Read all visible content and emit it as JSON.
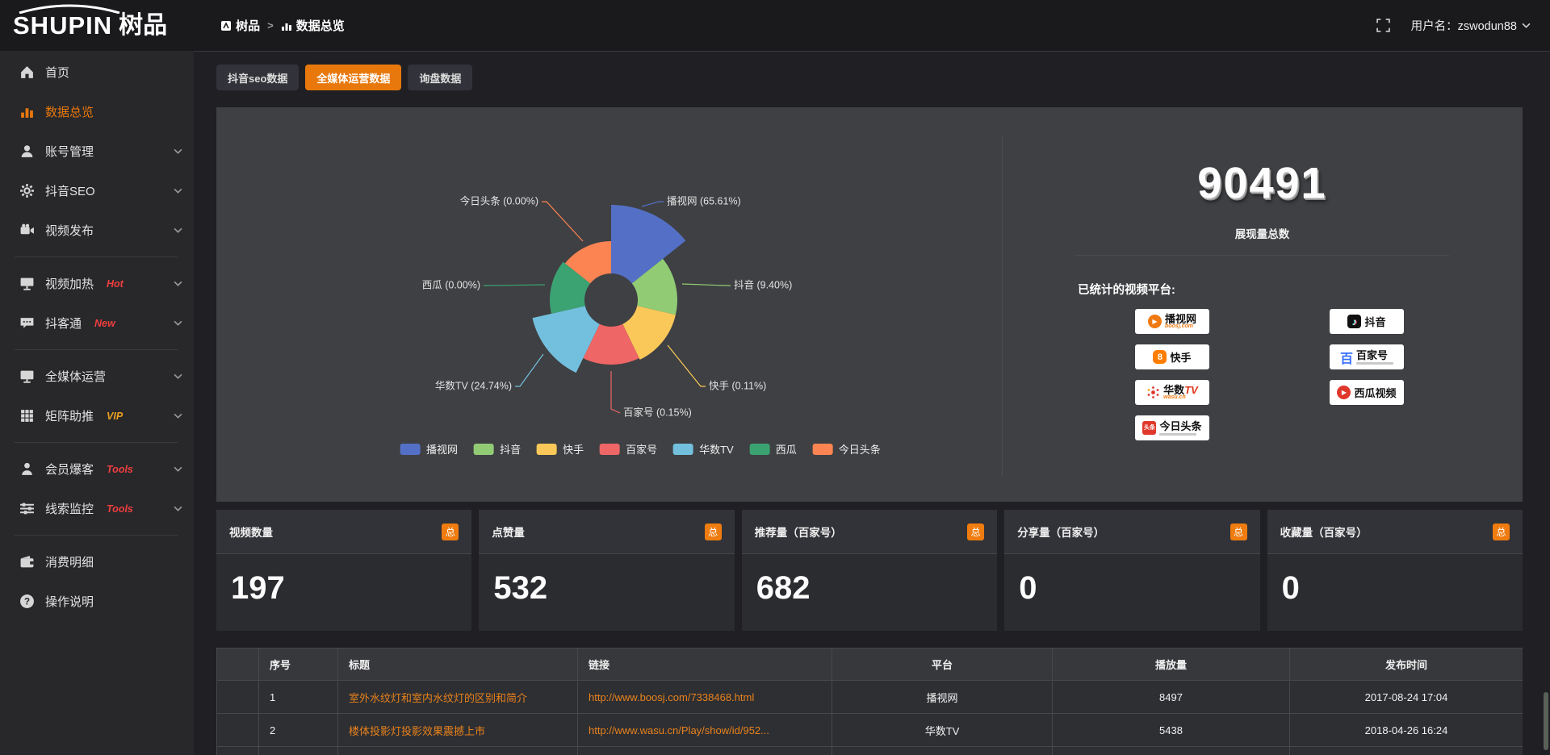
{
  "header": {
    "logo_text": "SHUPIN",
    "logo_suffix": "树品",
    "breadcrumb": [
      "树品",
      "数据总览"
    ],
    "username_label": "用户名：zswodun88"
  },
  "sidebar": {
    "items": [
      {
        "label": "首页"
      },
      {
        "label": "数据总览",
        "active": true
      },
      {
        "label": "账号管理"
      },
      {
        "label": "抖音SEO"
      },
      {
        "label": "视频发布"
      },
      {
        "label": "视频加热",
        "badge": "Hot"
      },
      {
        "label": "抖客通",
        "badge": "New"
      },
      {
        "label": "全媒体运营"
      },
      {
        "label": "矩阵助推",
        "badge": "VIP"
      },
      {
        "label": "会员爆客",
        "badge": "Tools"
      },
      {
        "label": "线索监控",
        "badge": "Tools"
      },
      {
        "label": "消费明细"
      },
      {
        "label": "操作说明"
      }
    ]
  },
  "tabs": {
    "active_index": 1,
    "items": [
      {
        "label": "抖音seo数据"
      },
      {
        "label": "全媒体运营数据"
      },
      {
        "label": "询盘数据"
      }
    ]
  },
  "chart_data": {
    "type": "pie",
    "style": "rose",
    "legend_position": "bottom",
    "slices": [
      {
        "name": "播视网",
        "pct": 65.61,
        "pct_label": "65.61%",
        "color": "#5470c6"
      },
      {
        "name": "抖音",
        "pct": 9.4,
        "pct_label": "9.40%",
        "color": "#91cc75"
      },
      {
        "name": "快手",
        "pct": 0.11,
        "pct_label": "0.11%",
        "color": "#fac858"
      },
      {
        "name": "百家号",
        "pct": 0.15,
        "pct_label": "0.15%",
        "color": "#ee6666"
      },
      {
        "name": "华数TV",
        "pct": 24.74,
        "pct_label": "24.74%",
        "color": "#73c0de"
      },
      {
        "name": "西瓜",
        "pct": 0.0,
        "pct_label": "0.00%",
        "color": "#3ba272"
      },
      {
        "name": "今日头条",
        "pct": 0.0,
        "pct_label": "0.00%",
        "color": "#fc8452"
      }
    ]
  },
  "summary": {
    "total_value": "90491",
    "total_label": "展现量总数",
    "platforms_heading": "已统计的视频平台:",
    "platforms": [
      {
        "name": "播视网",
        "sub": "boosj.com"
      },
      {
        "name": "快手"
      },
      {
        "name": "华数",
        "accent": "TV",
        "sub": "wasu.cn"
      },
      {
        "name": "今日头条",
        "icon_text": "头条"
      },
      {
        "name": "抖音",
        "icon_text": "♪"
      },
      {
        "name": "百家号",
        "icon_text": "百"
      },
      {
        "name": "西瓜视频"
      }
    ]
  },
  "cards": [
    {
      "title": "视频数量",
      "badge": "总",
      "value": "197"
    },
    {
      "title": "点赞量",
      "badge": "总",
      "value": "532"
    },
    {
      "title": "推荐量（百家号）",
      "badge": "总",
      "value": "682"
    },
    {
      "title": "分享量（百家号）",
      "badge": "总",
      "value": "0"
    },
    {
      "title": "收藏量（百家号）",
      "badge": "总",
      "value": "0"
    }
  ],
  "table": {
    "headers": [
      "序号",
      "标题",
      "链接",
      "平台",
      "播放量",
      "发布时间"
    ],
    "rows": [
      {
        "num": "1",
        "title": "室外水纹灯和室内水纹灯的区别和简介",
        "link": "http://www.boosj.com/7338468.html",
        "platform": "播视网",
        "plays": "8497",
        "time": "2017-08-24 17:04"
      },
      {
        "num": "2",
        "title": "楼体投影灯投影效果震撼上市",
        "link": "http://www.wasu.cn/Play/show/id/952...",
        "platform": "华数TV",
        "plays": "5438",
        "time": "2018-04-26 16:24"
      }
    ]
  },
  "colors": {
    "accent": "#e8780c",
    "link": "#e8821c",
    "hot_badge": "#f03e3e",
    "vip_badge": "#e8a020"
  }
}
